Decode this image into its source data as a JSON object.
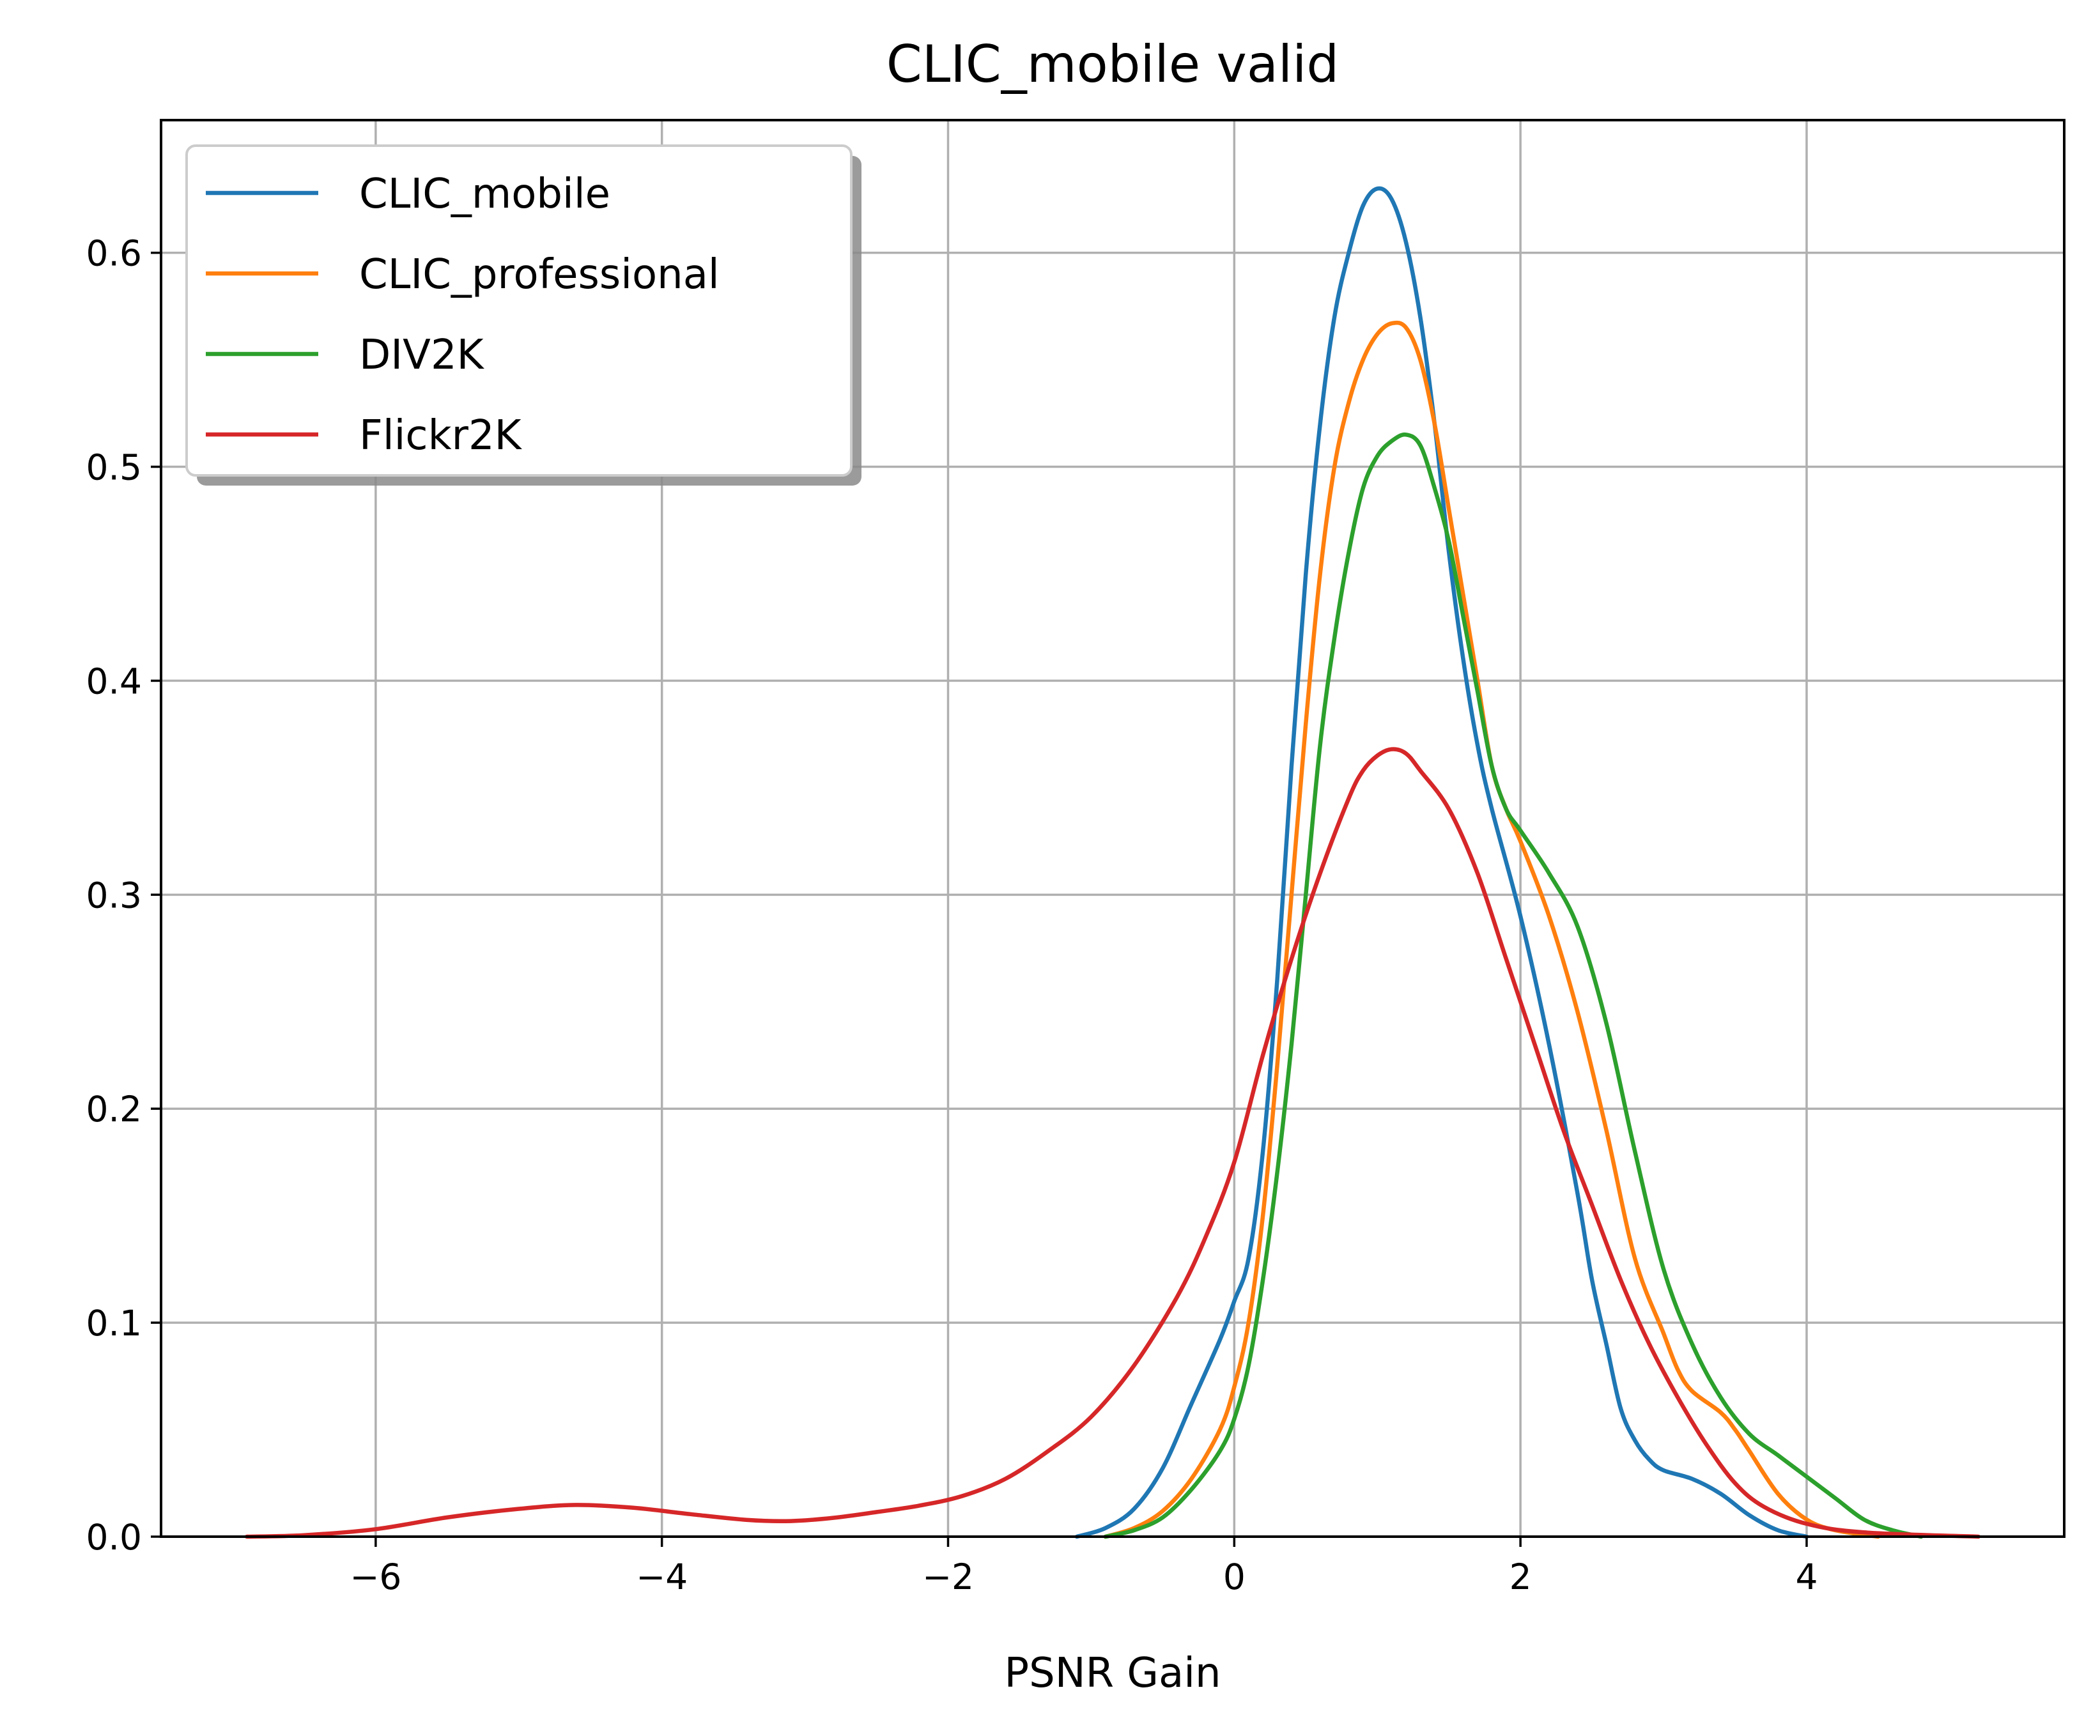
{
  "chart_data": {
    "type": "line",
    "title": "CLIC_mobile valid",
    "xlabel": "PSNR Gain",
    "ylabel": "",
    "xlim": [
      -7.5,
      5.8
    ],
    "ylim": [
      0.0,
      0.662
    ],
    "xticks": [
      -6,
      -4,
      -2,
      0,
      2,
      4
    ],
    "xtick_labels": [
      "−6",
      "−4",
      "−2",
      "0",
      "2",
      "4"
    ],
    "yticks": [
      0.0,
      0.1,
      0.2,
      0.3,
      0.4,
      0.5,
      0.6
    ],
    "ytick_labels": [
      "0.0",
      "0.1",
      "0.2",
      "0.3",
      "0.4",
      "0.5",
      "0.6"
    ],
    "grid": true,
    "legend_position": "top-left",
    "series": [
      {
        "name": "CLIC_mobile",
        "color": "#1f77b4",
        "points": [
          [
            -1.1,
            0.0
          ],
          [
            -0.9,
            0.004
          ],
          [
            -0.7,
            0.013
          ],
          [
            -0.5,
            0.032
          ],
          [
            -0.3,
            0.062
          ],
          [
            -0.1,
            0.092
          ],
          [
            0.0,
            0.11
          ],
          [
            0.1,
            0.13
          ],
          [
            0.2,
            0.18
          ],
          [
            0.3,
            0.26
          ],
          [
            0.4,
            0.36
          ],
          [
            0.5,
            0.45
          ],
          [
            0.6,
            0.52
          ],
          [
            0.7,
            0.57
          ],
          [
            0.8,
            0.6
          ],
          [
            0.9,
            0.622
          ],
          [
            1.0,
            0.63
          ],
          [
            1.1,
            0.625
          ],
          [
            1.2,
            0.605
          ],
          [
            1.3,
            0.57
          ],
          [
            1.4,
            0.52
          ],
          [
            1.5,
            0.46
          ],
          [
            1.6,
            0.41
          ],
          [
            1.7,
            0.37
          ],
          [
            1.8,
            0.34
          ],
          [
            2.0,
            0.29
          ],
          [
            2.2,
            0.23
          ],
          [
            2.4,
            0.16
          ],
          [
            2.5,
            0.12
          ],
          [
            2.6,
            0.09
          ],
          [
            2.7,
            0.06
          ],
          [
            2.8,
            0.045
          ],
          [
            2.9,
            0.036
          ],
          [
            3.0,
            0.031
          ],
          [
            3.2,
            0.027
          ],
          [
            3.4,
            0.02
          ],
          [
            3.6,
            0.01
          ],
          [
            3.8,
            0.003
          ],
          [
            4.0,
            0.0
          ]
        ]
      },
      {
        "name": "CLIC_professional",
        "color": "#ff7f0e",
        "points": [
          [
            -0.9,
            0.0
          ],
          [
            -0.7,
            0.004
          ],
          [
            -0.5,
            0.012
          ],
          [
            -0.3,
            0.027
          ],
          [
            -0.1,
            0.05
          ],
          [
            0.0,
            0.07
          ],
          [
            0.1,
            0.1
          ],
          [
            0.2,
            0.15
          ],
          [
            0.3,
            0.22
          ],
          [
            0.4,
            0.3
          ],
          [
            0.5,
            0.38
          ],
          [
            0.6,
            0.45
          ],
          [
            0.7,
            0.5
          ],
          [
            0.8,
            0.53
          ],
          [
            0.9,
            0.55
          ],
          [
            1.0,
            0.562
          ],
          [
            1.1,
            0.567
          ],
          [
            1.2,
            0.565
          ],
          [
            1.3,
            0.55
          ],
          [
            1.4,
            0.52
          ],
          [
            1.5,
            0.48
          ],
          [
            1.6,
            0.44
          ],
          [
            1.7,
            0.4
          ],
          [
            1.8,
            0.36
          ],
          [
            1.9,
            0.34
          ],
          [
            2.0,
            0.325
          ],
          [
            2.2,
            0.29
          ],
          [
            2.4,
            0.245
          ],
          [
            2.6,
            0.19
          ],
          [
            2.8,
            0.13
          ],
          [
            3.0,
            0.095
          ],
          [
            3.1,
            0.078
          ],
          [
            3.2,
            0.068
          ],
          [
            3.4,
            0.058
          ],
          [
            3.5,
            0.05
          ],
          [
            3.6,
            0.04
          ],
          [
            3.8,
            0.02
          ],
          [
            4.0,
            0.008
          ],
          [
            4.2,
            0.003
          ],
          [
            4.5,
            0.0
          ]
        ]
      },
      {
        "name": "DIV2K",
        "color": "#2ca02c",
        "points": [
          [
            -0.9,
            0.0
          ],
          [
            -0.7,
            0.003
          ],
          [
            -0.5,
            0.009
          ],
          [
            -0.3,
            0.022
          ],
          [
            -0.1,
            0.04
          ],
          [
            0.0,
            0.055
          ],
          [
            0.1,
            0.08
          ],
          [
            0.2,
            0.12
          ],
          [
            0.3,
            0.17
          ],
          [
            0.4,
            0.23
          ],
          [
            0.5,
            0.3
          ],
          [
            0.6,
            0.37
          ],
          [
            0.7,
            0.42
          ],
          [
            0.8,
            0.46
          ],
          [
            0.9,
            0.49
          ],
          [
            1.0,
            0.505
          ],
          [
            1.1,
            0.512
          ],
          [
            1.2,
            0.515
          ],
          [
            1.3,
            0.51
          ],
          [
            1.4,
            0.49
          ],
          [
            1.5,
            0.465
          ],
          [
            1.6,
            0.43
          ],
          [
            1.7,
            0.395
          ],
          [
            1.8,
            0.36
          ],
          [
            1.9,
            0.34
          ],
          [
            2.0,
            0.33
          ],
          [
            2.2,
            0.31
          ],
          [
            2.4,
            0.285
          ],
          [
            2.6,
            0.24
          ],
          [
            2.8,
            0.18
          ],
          [
            3.0,
            0.125
          ],
          [
            3.2,
            0.09
          ],
          [
            3.4,
            0.065
          ],
          [
            3.6,
            0.048
          ],
          [
            3.8,
            0.038
          ],
          [
            4.0,
            0.028
          ],
          [
            4.2,
            0.018
          ],
          [
            4.4,
            0.008
          ],
          [
            4.6,
            0.003
          ],
          [
            4.8,
            0.0
          ]
        ]
      },
      {
        "name": "Flickr2K",
        "color": "#d62728",
        "points": [
          [
            -6.9,
            0.0
          ],
          [
            -6.5,
            0.0007
          ],
          [
            -6.0,
            0.0035
          ],
          [
            -5.5,
            0.009
          ],
          [
            -5.0,
            0.013
          ],
          [
            -4.6,
            0.0148
          ],
          [
            -4.2,
            0.0135
          ],
          [
            -3.8,
            0.0105
          ],
          [
            -3.4,
            0.0078
          ],
          [
            -3.1,
            0.0073
          ],
          [
            -2.8,
            0.0088
          ],
          [
            -2.5,
            0.0115
          ],
          [
            -2.2,
            0.0145
          ],
          [
            -1.9,
            0.019
          ],
          [
            -1.6,
            0.027
          ],
          [
            -1.3,
            0.04
          ],
          [
            -1.0,
            0.056
          ],
          [
            -0.7,
            0.08
          ],
          [
            -0.4,
            0.112
          ],
          [
            -0.2,
            0.14
          ],
          [
            0.0,
            0.175
          ],
          [
            0.2,
            0.225
          ],
          [
            0.4,
            0.27
          ],
          [
            0.6,
            0.31
          ],
          [
            0.8,
            0.345
          ],
          [
            0.9,
            0.358
          ],
          [
            1.0,
            0.365
          ],
          [
            1.1,
            0.368
          ],
          [
            1.2,
            0.366
          ],
          [
            1.3,
            0.358
          ],
          [
            1.5,
            0.34
          ],
          [
            1.7,
            0.31
          ],
          [
            1.9,
            0.27
          ],
          [
            2.1,
            0.23
          ],
          [
            2.3,
            0.19
          ],
          [
            2.5,
            0.155
          ],
          [
            2.7,
            0.12
          ],
          [
            2.9,
            0.09
          ],
          [
            3.1,
            0.065
          ],
          [
            3.3,
            0.043
          ],
          [
            3.5,
            0.025
          ],
          [
            3.7,
            0.014
          ],
          [
            4.0,
            0.006
          ],
          [
            4.4,
            0.002
          ],
          [
            5.2,
            0.0
          ]
        ]
      }
    ]
  }
}
